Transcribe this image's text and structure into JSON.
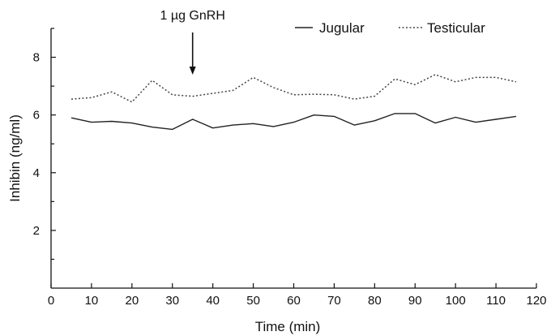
{
  "chart_data": {
    "type": "line",
    "xlabel": "Time (min)",
    "ylabel": "Inhibin (ng/ml)",
    "xlim": [
      0,
      120
    ],
    "ylim": [
      0,
      9
    ],
    "x_ticks": [
      0,
      10,
      20,
      30,
      40,
      50,
      60,
      70,
      80,
      90,
      100,
      110,
      120
    ],
    "x_tick_labels": [
      "0",
      "10",
      "20",
      "30",
      "40",
      "50",
      "60",
      "70",
      "80",
      "90",
      "100",
      "110",
      "120"
    ],
    "y_ticks": [
      2,
      4,
      6,
      8
    ],
    "y_tick_labels": [
      "2",
      "4",
      "6",
      "8"
    ],
    "y_minor_ticks": [
      1,
      3,
      5,
      7,
      9
    ],
    "legend_position": "top-right",
    "annotation": {
      "text": "1 µg GnRH",
      "x": 35
    },
    "series": [
      {
        "name": "Jugular",
        "style": "solid",
        "x": [
          5,
          10,
          15,
          20,
          25,
          30,
          35,
          40,
          45,
          50,
          55,
          60,
          65,
          70,
          75,
          80,
          85,
          90,
          95,
          100,
          105,
          110,
          115
        ],
        "values": [
          5.9,
          5.75,
          5.78,
          5.72,
          5.58,
          5.5,
          5.85,
          5.55,
          5.65,
          5.7,
          5.6,
          5.75,
          6.0,
          5.95,
          5.65,
          5.8,
          6.05,
          6.05,
          5.72,
          5.92,
          5.75,
          5.85,
          5.95
        ]
      },
      {
        "name": "Testicular",
        "style": "dotted",
        "x": [
          5,
          10,
          15,
          20,
          25,
          30,
          35,
          40,
          45,
          50,
          55,
          60,
          65,
          70,
          75,
          80,
          85,
          90,
          95,
          100,
          105,
          110,
          115
        ],
        "values": [
          6.55,
          6.6,
          6.8,
          6.45,
          7.2,
          6.7,
          6.65,
          6.75,
          6.85,
          7.3,
          6.95,
          6.7,
          6.72,
          6.7,
          6.55,
          6.65,
          7.25,
          7.05,
          7.4,
          7.15,
          7.3,
          7.3,
          7.15
        ]
      }
    ]
  }
}
